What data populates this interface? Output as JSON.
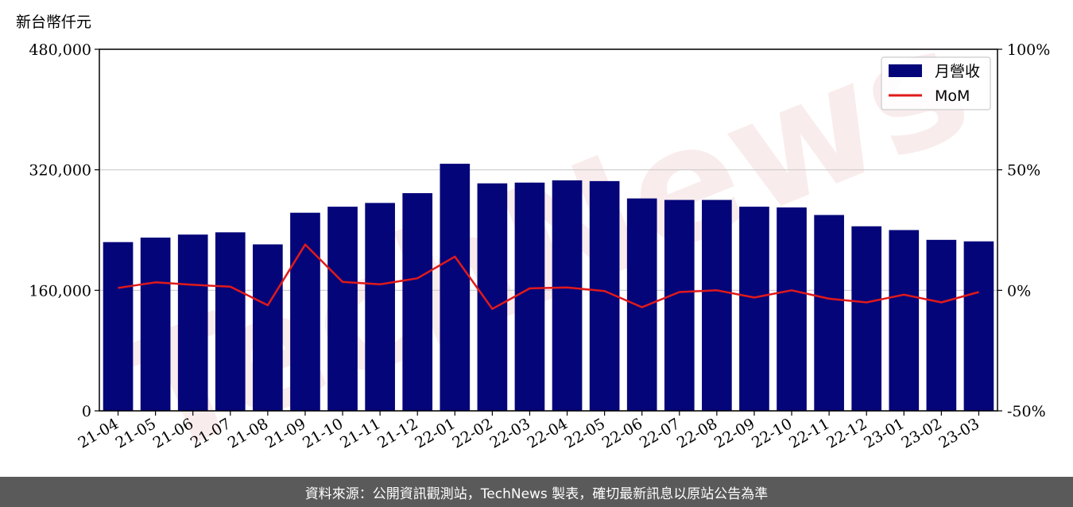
{
  "colors": {
    "bar": "#05057a",
    "line": "#e01a1a",
    "grid": "#cccccc",
    "footer_bg": "#5a5a5a"
  },
  "watermark": "TechNews",
  "footer": {
    "text": "資料來源：公開資訊觀測站，TechNews 製表，確切最新訊息以原站公告為準"
  },
  "chart_data": {
    "type": "bar",
    "ylabel": "新台幣仟元",
    "categories": [
      "21-04",
      "21-05",
      "21-06",
      "21-07",
      "21-08",
      "21-09",
      "21-10",
      "21-11",
      "21-12",
      "22-01",
      "22-02",
      "22-03",
      "22-04",
      "22-05",
      "22-06",
      "22-07",
      "22-08",
      "22-09",
      "22-10",
      "22-11",
      "22-12",
      "23-01",
      "23-02",
      "23-03"
    ],
    "series": [
      {
        "name": "月營收",
        "type": "bar",
        "axis": "left",
        "values": [
          224000,
          230000,
          234000,
          237000,
          221000,
          263000,
          271000,
          276000,
          289000,
          328000,
          302000,
          303000,
          306000,
          305000,
          282000,
          280000,
          280000,
          271000,
          270000,
          260000,
          245000,
          240000,
          227000,
          225000
        ]
      },
      {
        "name": "MoM",
        "type": "line",
        "axis": "right",
        "values": [
          1.0,
          3.3,
          2.3,
          1.5,
          -6.2,
          19.0,
          3.5,
          2.5,
          5.0,
          14.0,
          -7.7,
          0.8,
          1.2,
          -0.3,
          -7.0,
          -0.7,
          0.0,
          -3.0,
          0.0,
          -3.5,
          -5.0,
          -1.8,
          -5.0,
          -0.7
        ]
      }
    ],
    "ylim_left": [
      0,
      480000
    ],
    "ylim_right": [
      -50,
      100
    ],
    "yticks_left": [
      "0",
      "160,000",
      "320,000",
      "480,000"
    ],
    "yticks_right": [
      "-50%",
      "0%",
      "50%",
      "100%"
    ],
    "grid": "horizontal",
    "legend": "top-right"
  }
}
